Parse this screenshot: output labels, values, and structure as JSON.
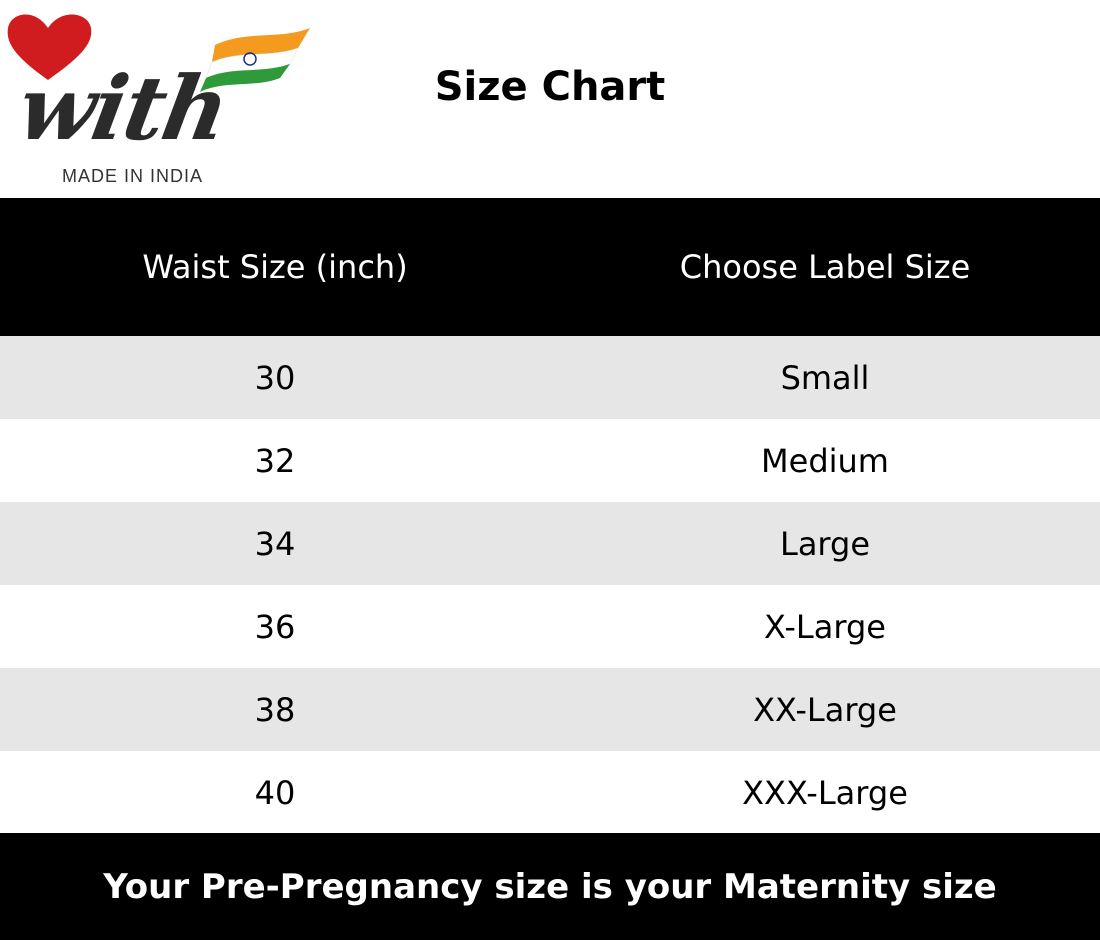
{
  "logo": {
    "wordmark": "with",
    "tagline": "MADE IN INDIA",
    "heart_color": "#d01c1f"
  },
  "title": "Size Chart",
  "table": {
    "headers": [
      "Waist Size (inch)",
      "Choose Label Size"
    ],
    "rows": [
      [
        "30",
        "Small"
      ],
      [
        "32",
        "Medium"
      ],
      [
        "34",
        "Large"
      ],
      [
        "36",
        "X-Large"
      ],
      [
        "38",
        "XX-Large"
      ],
      [
        "40",
        "XXX-Large"
      ]
    ]
  },
  "footer": "Your Pre-Pregnancy size is your Maternity size"
}
